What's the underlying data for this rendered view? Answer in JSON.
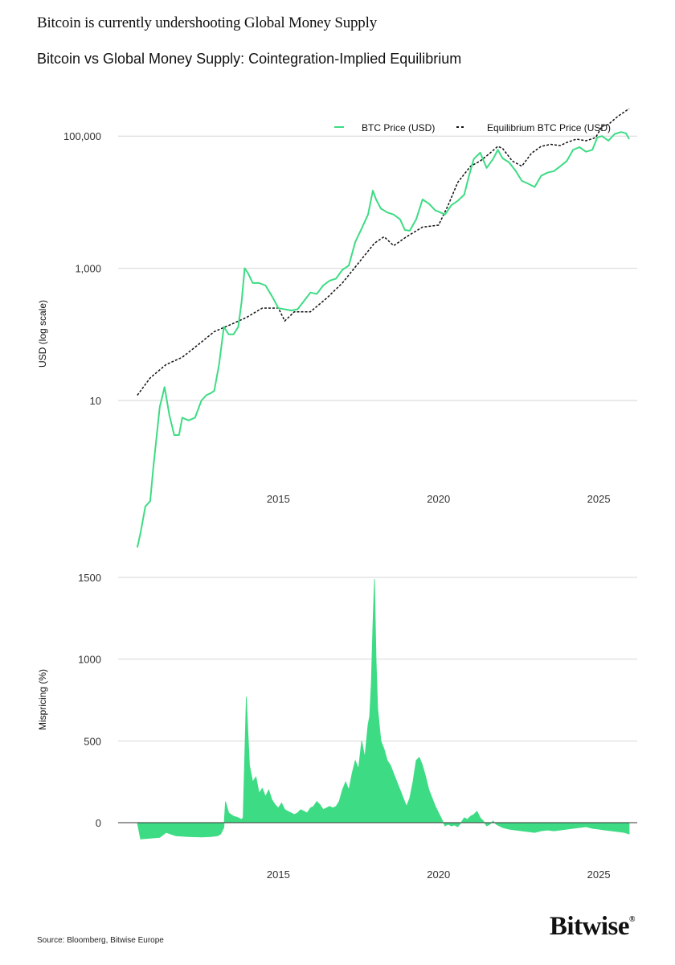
{
  "headline": "Bitcoin is currently undershooting Global Money Supply",
  "subtitle": "Bitcoin vs Global Money Supply: Cointegration-Implied Equilibrium",
  "source": "Source: Bloomberg, Bitwise Europe",
  "brand": "Bitwise",
  "colors": {
    "btc": "#3ddc84",
    "equilibrium": "#111111",
    "grid": "#d6d6d6"
  },
  "chart_data": [
    {
      "type": "line",
      "ylabel": "USD (log scale)",
      "log_scale": true,
      "ylim": [
        0.5,
        300000
      ],
      "xlim": [
        2010.0,
        2026.2
      ],
      "x_ticks": [
        2015,
        2020,
        2025
      ],
      "x_tick_labels": [
        "2015",
        "2020",
        "2025"
      ],
      "y_ticks": [
        10,
        1000,
        100000
      ],
      "y_tick_labels": [
        "10",
        "1,000",
        "100,000"
      ],
      "grid": true,
      "legend_position": "top-right",
      "series": [
        {
          "name": "BTC Price (USD)",
          "style": "solid",
          "x": [
            2010.6,
            2010.7,
            2010.85,
            2011.0,
            2011.1,
            2011.3,
            2011.45,
            2011.6,
            2011.75,
            2011.9,
            2012.0,
            2012.2,
            2012.4,
            2012.6,
            2012.75,
            2012.9,
            2013.0,
            2013.15,
            2013.3,
            2013.45,
            2013.6,
            2013.75,
            2013.85,
            2013.95,
            2014.05,
            2014.2,
            2014.4,
            2014.6,
            2014.8,
            2015.0,
            2015.2,
            2015.4,
            2015.6,
            2015.8,
            2016.0,
            2016.2,
            2016.4,
            2016.6,
            2016.8,
            2017.0,
            2017.2,
            2017.4,
            2017.6,
            2017.8,
            2017.95,
            2018.05,
            2018.2,
            2018.4,
            2018.6,
            2018.8,
            2018.95,
            2019.1,
            2019.3,
            2019.5,
            2019.7,
            2019.9,
            2020.0,
            2020.2,
            2020.4,
            2020.6,
            2020.8,
            2020.95,
            2021.1,
            2021.3,
            2021.5,
            2021.7,
            2021.85,
            2022.0,
            2022.2,
            2022.4,
            2022.6,
            2022.8,
            2023.0,
            2023.2,
            2023.4,
            2023.6,
            2023.8,
            2024.0,
            2024.2,
            2024.4,
            2024.6,
            2024.8,
            2024.95,
            2025.1,
            2025.3,
            2025.5,
            2025.7,
            2025.85,
            2025.95
          ],
          "values": [
            0.06,
            0.1,
            0.25,
            0.3,
            1.0,
            8.0,
            16.0,
            6.0,
            3.0,
            3.0,
            5.5,
            5.0,
            5.5,
            10.0,
            12.0,
            13.0,
            14.0,
            35.0,
            130.0,
            100.0,
            100.0,
            130.0,
            300.0,
            1000.0,
            850.0,
            600.0,
            600.0,
            550.0,
            380.0,
            250.0,
            240.0,
            230.0,
            240.0,
            320.0,
            430.0,
            410.0,
            550.0,
            650.0,
            700.0,
            950.0,
            1100.0,
            2500.0,
            4000.0,
            6500.0,
            15000.0,
            11000.0,
            8000.0,
            7000.0,
            6500.0,
            5500.0,
            3800.0,
            3700.0,
            5500.0,
            11000.0,
            9500.0,
            7500.0,
            7200.0,
            6500.0,
            9000.0,
            10500.0,
            13000.0,
            25000.0,
            45000.0,
            56000.0,
            33000.0,
            45000.0,
            62000.0,
            46000.0,
            40000.0,
            30000.0,
            21000.0,
            19000.0,
            17000.0,
            25000.0,
            28000.0,
            29500.0,
            35000.0,
            42000.0,
            62000.0,
            68000.0,
            58000.0,
            62000.0,
            95000.0,
            100000.0,
            85000.0,
            108000.0,
            115000.0,
            110000.0,
            90000.0
          ]
        },
        {
          "name": "Equilibrium BTC Price (USD)",
          "style": "dashed",
          "x": [
            2010.6,
            2011.0,
            2011.5,
            2012.0,
            2012.5,
            2013.0,
            2013.5,
            2014.0,
            2014.5,
            2015.0,
            2015.2,
            2015.5,
            2016.0,
            2016.5,
            2017.0,
            2017.5,
            2018.0,
            2018.3,
            2018.6,
            2019.0,
            2019.5,
            2020.0,
            2020.3,
            2020.6,
            2021.0,
            2021.3,
            2021.6,
            2021.85,
            2022.0,
            2022.3,
            2022.6,
            2022.9,
            2023.2,
            2023.5,
            2023.8,
            2024.0,
            2024.3,
            2024.6,
            2024.9,
            2025.1,
            2025.3,
            2025.6,
            2025.95
          ],
          "values": [
            12.0,
            22.0,
            35.0,
            45.0,
            70.0,
            110.0,
            140.0,
            180.0,
            250.0,
            250.0,
            160.0,
            220.0,
            220.0,
            350.0,
            600.0,
            1200.0,
            2400.0,
            3000.0,
            2200.0,
            3000.0,
            4200.0,
            4500.0,
            9000.0,
            20000.0,
            35000.0,
            42000.0,
            55000.0,
            70000.0,
            65000.0,
            42000.0,
            35000.0,
            55000.0,
            70000.0,
            75000.0,
            72000.0,
            80000.0,
            90000.0,
            85000.0,
            95000.0,
            140000.0,
            150000.0,
            200000.0,
            260000.0
          ]
        }
      ]
    },
    {
      "type": "area",
      "ylabel": "Mispricing (%)",
      "ylim": [
        -150,
        1500
      ],
      "xlim": [
        2010.0,
        2026.2
      ],
      "x_ticks": [
        2015,
        2020,
        2025
      ],
      "x_tick_labels": [
        "2015",
        "2020",
        "2025"
      ],
      "y_ticks": [
        0,
        500,
        1000,
        1500
      ],
      "y_tick_labels": [
        "0",
        "500",
        "1000",
        "1500"
      ],
      "grid": true,
      "series": [
        {
          "name": "Mispricing (%)",
          "x": [
            2010.6,
            2010.7,
            2011.0,
            2011.3,
            2011.5,
            2011.8,
            2012.2,
            2012.6,
            2012.9,
            2013.1,
            2013.2,
            2013.3,
            2013.35,
            2013.45,
            2013.6,
            2013.75,
            2013.85,
            2013.9,
            2013.95,
            2014.0,
            2014.1,
            2014.2,
            2014.3,
            2014.4,
            2014.5,
            2014.6,
            2014.7,
            2014.8,
            2014.9,
            2015.0,
            2015.1,
            2015.2,
            2015.3,
            2015.4,
            2015.5,
            2015.6,
            2015.7,
            2015.8,
            2015.9,
            2016.0,
            2016.1,
            2016.2,
            2016.3,
            2016.4,
            2016.5,
            2016.6,
            2016.7,
            2016.8,
            2016.9,
            2017.0,
            2017.1,
            2017.2,
            2017.3,
            2017.4,
            2017.5,
            2017.6,
            2017.7,
            2017.8,
            2017.85,
            2017.9,
            2017.95,
            2018.0,
            2018.05,
            2018.1,
            2018.15,
            2018.2,
            2018.3,
            2018.4,
            2018.5,
            2018.6,
            2018.7,
            2018.8,
            2018.9,
            2019.0,
            2019.1,
            2019.2,
            2019.3,
            2019.4,
            2019.5,
            2019.6,
            2019.7,
            2019.8,
            2019.9,
            2020.0,
            2020.1,
            2020.2,
            2020.3,
            2020.4,
            2020.5,
            2020.6,
            2020.7,
            2020.8,
            2020.9,
            2021.0,
            2021.1,
            2021.2,
            2021.3,
            2021.4,
            2021.5,
            2021.6,
            2021.7,
            2021.8,
            2021.9,
            2022.0,
            2022.2,
            2022.4,
            2022.6,
            2022.8,
            2023.0,
            2023.2,
            2023.4,
            2023.6,
            2023.8,
            2024.0,
            2024.2,
            2024.4,
            2024.6,
            2024.8,
            2025.0,
            2025.2,
            2025.4,
            2025.6,
            2025.8,
            2025.95
          ],
          "values": [
            0,
            -100,
            -95,
            -90,
            -60,
            -80,
            -85,
            -88,
            -85,
            -80,
            -70,
            -30,
            130,
            60,
            40,
            30,
            20,
            30,
            400,
            770,
            350,
            250,
            280,
            180,
            210,
            160,
            200,
            140,
            110,
            90,
            120,
            80,
            70,
            60,
            50,
            60,
            80,
            70,
            60,
            90,
            100,
            130,
            110,
            80,
            90,
            100,
            90,
            100,
            130,
            200,
            250,
            200,
            300,
            380,
            330,
            500,
            400,
            600,
            650,
            850,
            1200,
            1490,
            1000,
            700,
            600,
            500,
            450,
            380,
            350,
            300,
            250,
            200,
            150,
            100,
            150,
            250,
            380,
            400,
            350,
            280,
            200,
            150,
            100,
            60,
            20,
            -20,
            -10,
            -20,
            -15,
            -25,
            0,
            30,
            20,
            40,
            50,
            70,
            30,
            10,
            -20,
            -10,
            10,
            -10,
            -20,
            -30,
            -40,
            -45,
            -50,
            -55,
            -60,
            -50,
            -45,
            -50,
            -45,
            -40,
            -35,
            -30,
            -25,
            -35,
            -40,
            -45,
            -50,
            -55,
            -60,
            -70
          ]
        }
      ]
    }
  ]
}
